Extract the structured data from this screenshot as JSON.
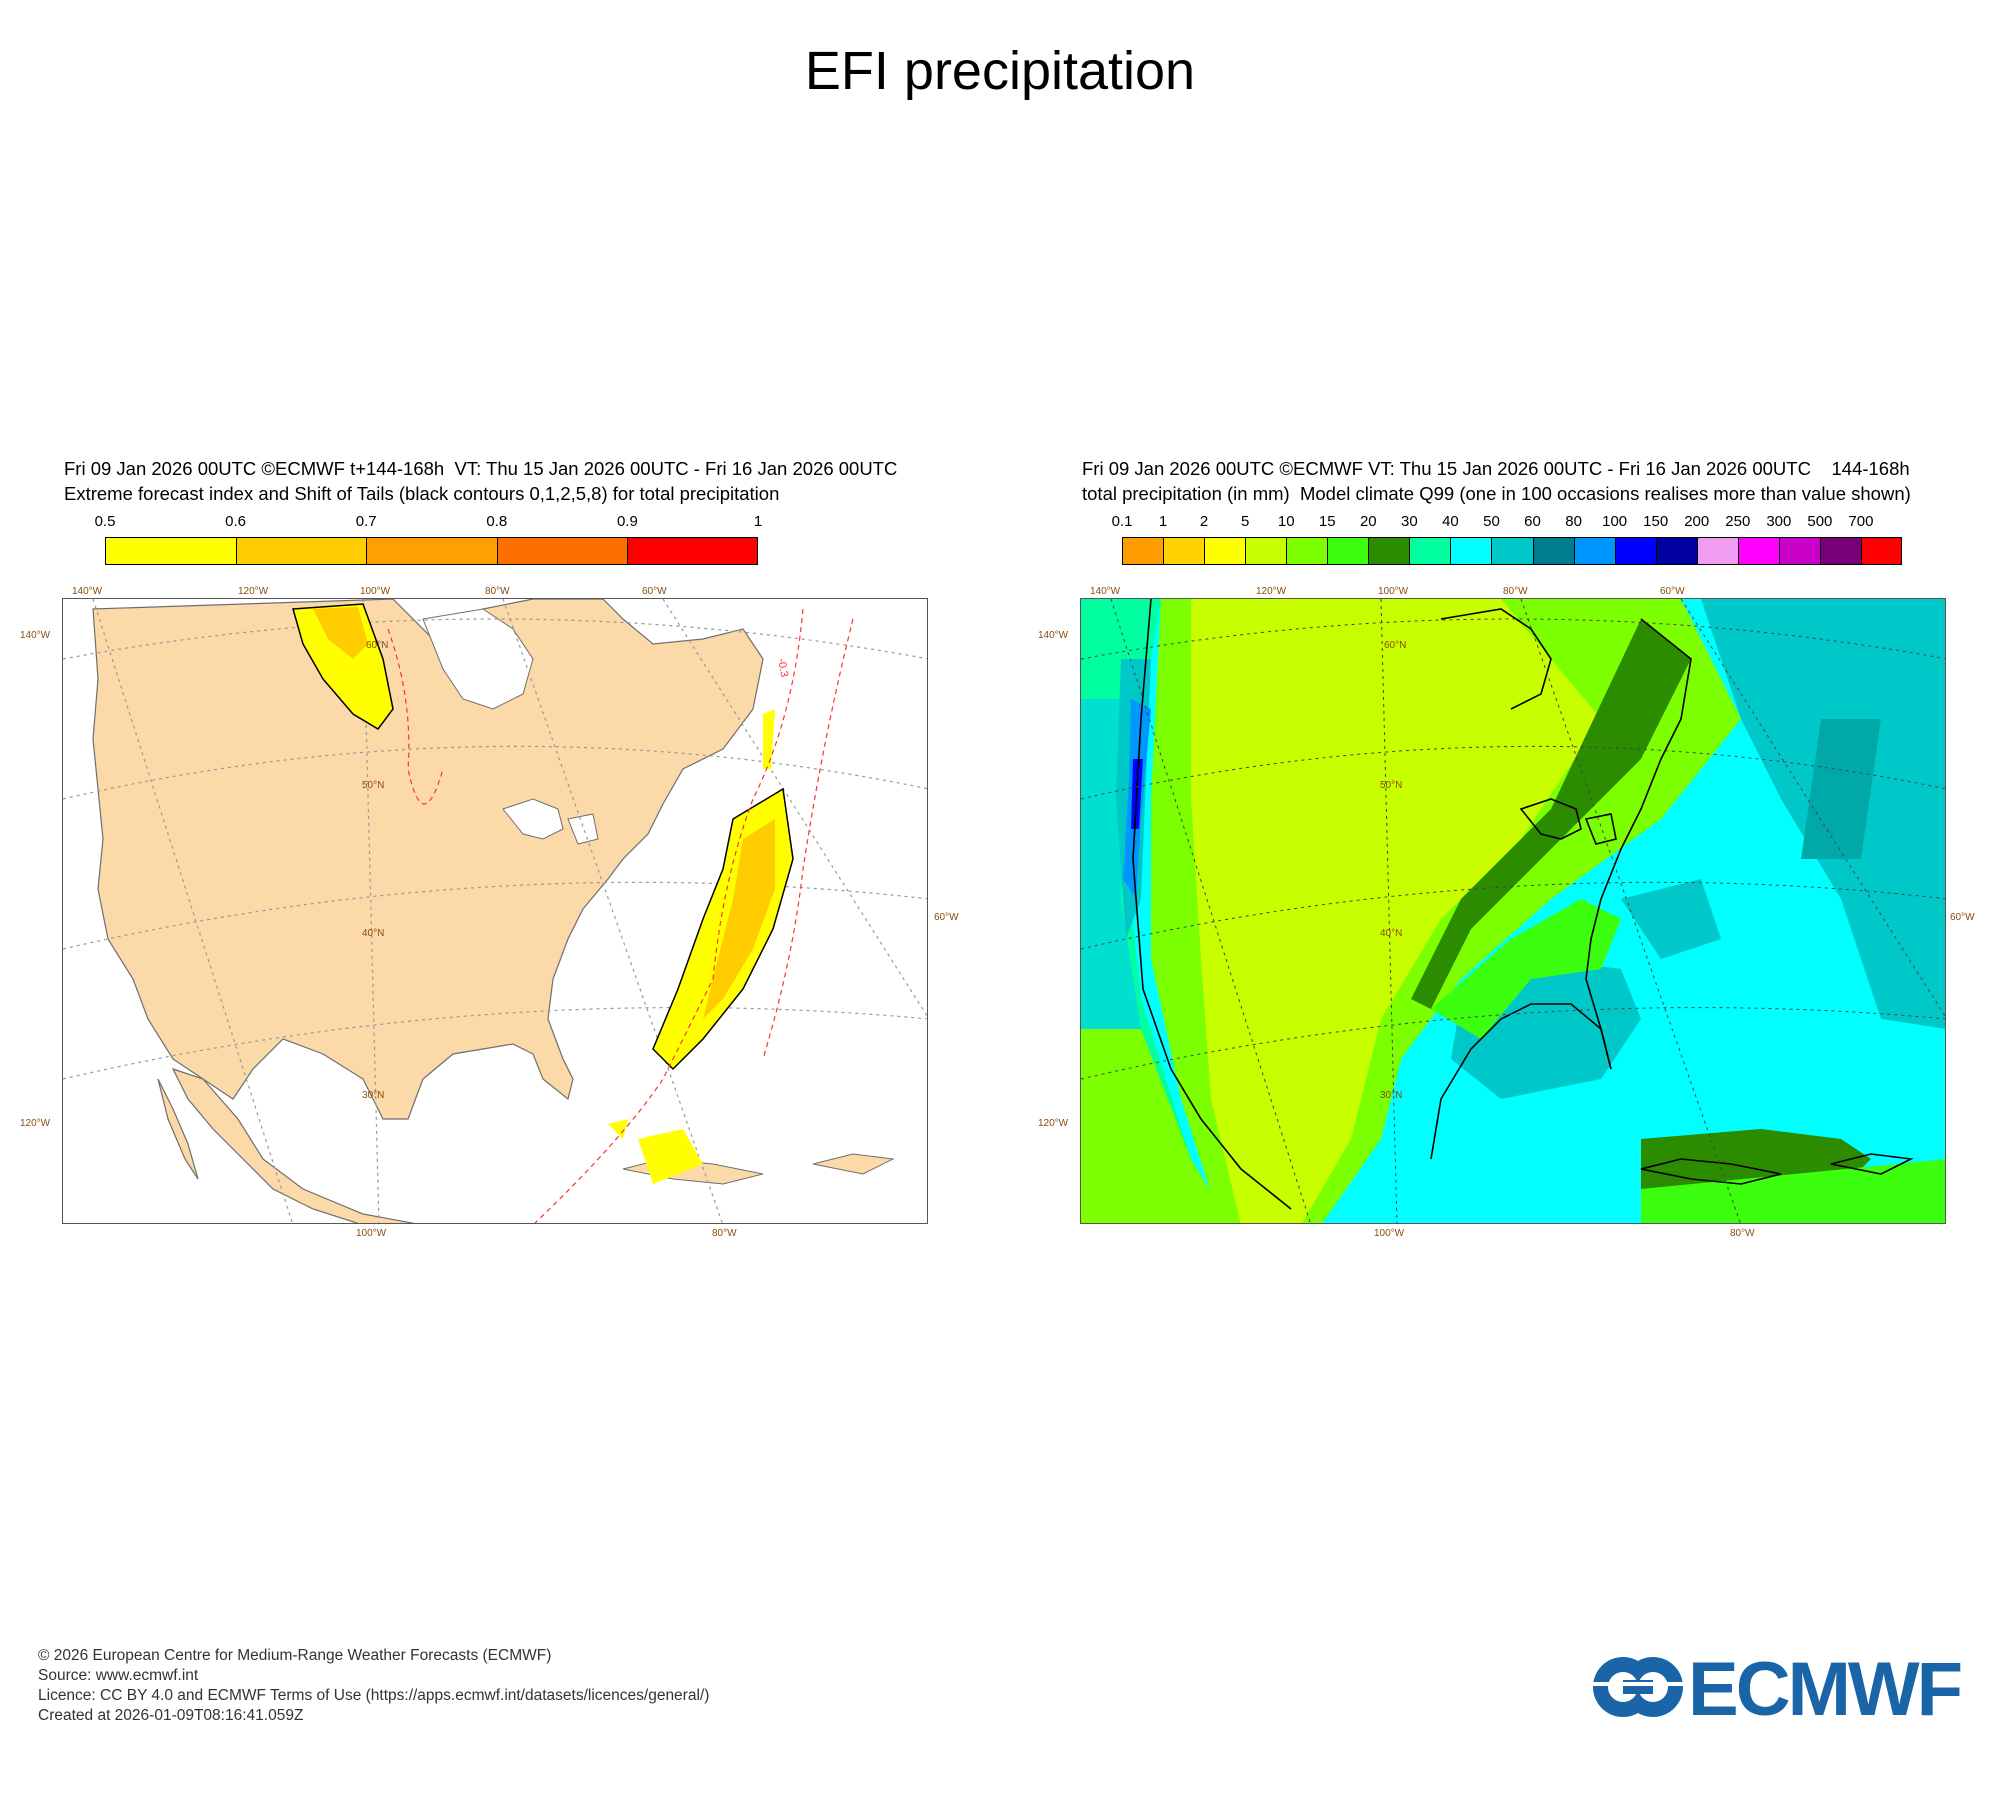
{
  "page": {
    "title": "EFI precipitation"
  },
  "left_panel": {
    "header_line1": "Fri 09 Jan 2026 00UTC ©ECMWF t+144-168h  VT: Thu 15 Jan 2026 00UTC - Fri 16 Jan 2026 00UTC",
    "header_line2": "Extreme forecast index and Shift of Tails (black contours 0,1,2,5,8) for total precipitation",
    "colorbar": {
      "ticks": [
        "0.5",
        "0.6",
        "0.7",
        "0.8",
        "0.9",
        "1"
      ],
      "colors": [
        "#ffff00",
        "#ffcc00",
        "#ff9f00",
        "#ff6f00",
        "#ff0000"
      ]
    },
    "contour_labels": [
      "-0.3"
    ],
    "lon_top": [
      "140°W",
      "120°W",
      "100°W",
      "80°W",
      "60°W"
    ],
    "lon_bottom": [
      "100°W",
      "80°W"
    ],
    "lat_labels": [
      "60°N",
      "50°N",
      "40°N",
      "30°N"
    ],
    "left_labels": [
      "140°W",
      "120°W"
    ],
    "right_labels": [
      "60°W"
    ]
  },
  "right_panel": {
    "header_line1": "Fri 09 Jan 2026 00UTC ©ECMWF VT: Thu 15 Jan 2026 00UTC - Fri 16 Jan 2026 00UTC    144-168h",
    "header_line2": "total precipitation (in mm)  Model climate Q99 (one in 100 occasions realises more than value shown)",
    "colorbar": {
      "ticks": [
        "0.1",
        "1",
        "2",
        "5",
        "10",
        "15",
        "20",
        "30",
        "40",
        "50",
        "60",
        "80",
        "100",
        "150",
        "200",
        "250",
        "300",
        "500",
        "700"
      ],
      "colors": [
        "#ff9c00",
        "#ffd200",
        "#ffff00",
        "#c8ff00",
        "#7cff00",
        "#3cff10",
        "#2c8c00",
        "#00ffa0",
        "#00ffff",
        "#00c8c8",
        "#007d8c",
        "#0096ff",
        "#0000ff",
        "#0000a0",
        "#f09cf0",
        "#ff00ff",
        "#c800c8",
        "#780078",
        "#ff0000"
      ]
    },
    "lon_top": [
      "140°W",
      "120°W",
      "100°W",
      "80°W",
      "60°W"
    ],
    "lon_bottom": [
      "100°W",
      "80°W"
    ],
    "lat_labels": [
      "60°N",
      "50°N",
      "40°N",
      "30°N"
    ],
    "left_labels": [
      "140°W",
      "120°W"
    ],
    "right_labels": [
      "60°W"
    ]
  },
  "footer": {
    "line1": "© 2026 European Centre for Medium-Range Weather Forecasts (ECMWF)",
    "line2": "Source: www.ecmwf.int",
    "line3": "Licence: CC BY 4.0 and ECMWF Terms of Use (https://apps.ecmwf.int/datasets/licences/general/)",
    "line4": "Created at 2026-01-09T08:16:41.059Z"
  },
  "logo": {
    "text": "ECMWF",
    "color": "#1a64a8"
  }
}
